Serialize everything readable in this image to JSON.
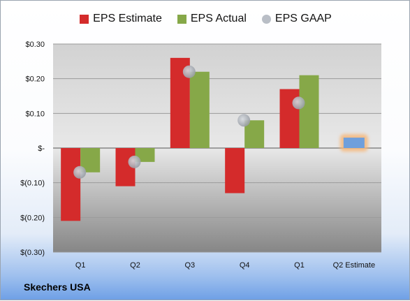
{
  "company": "Skechers USA",
  "colors": {
    "estimate": "#d42b2b",
    "actual": "#86a848",
    "gaap": "#b9bec6",
    "next_estimate": "#6f9fdc",
    "next_estimate_glow": "#f5b77a"
  },
  "chart_data": {
    "type": "bar",
    "categories": [
      "Q1",
      "Q2",
      "Q3",
      "Q4",
      "Q1",
      "Q2 Estimate"
    ],
    "series": [
      {
        "name": "EPS Estimate",
        "values": [
          -0.21,
          -0.11,
          0.26,
          -0.13,
          0.17,
          null
        ]
      },
      {
        "name": "EPS Actual",
        "values": [
          -0.07,
          -0.04,
          0.22,
          0.08,
          0.21,
          null
        ]
      },
      {
        "name": "EPS GAAP",
        "values": [
          -0.07,
          -0.04,
          0.22,
          0.08,
          0.13,
          null
        ]
      }
    ],
    "next_estimate": {
      "category": "Q2 Estimate",
      "value": 0.03
    },
    "y_ticks": [
      {
        "value": 0.3,
        "label": "$0.30"
      },
      {
        "value": 0.2,
        "label": "$0.20"
      },
      {
        "value": 0.1,
        "label": "$0.10"
      },
      {
        "value": 0.0,
        "label": "$-"
      },
      {
        "value": -0.1,
        "label": "$(0.10)"
      },
      {
        "value": -0.2,
        "label": "$(0.20)"
      },
      {
        "value": -0.3,
        "label": "$(0.30)"
      }
    ],
    "ylim": [
      -0.3,
      0.3
    ],
    "grid": true,
    "legend": "top-center"
  }
}
